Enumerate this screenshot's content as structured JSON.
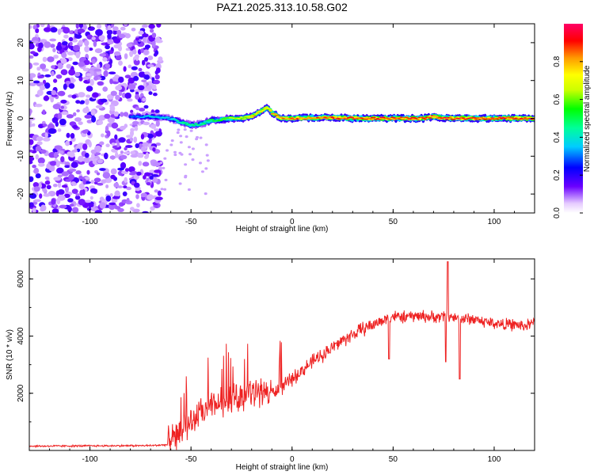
{
  "title": "PAZ1.2025.313.10.58.G02",
  "colors": {
    "snr_line": "#ee2222",
    "background": "#ffffff",
    "axis": "#000000"
  },
  "chart_data": [
    {
      "type": "heatmap",
      "title": "PAZ1.2025.313.10.58.G02",
      "xlabel": "Height of straight line (km)",
      "ylabel": "Frequency (Hz)",
      "xlim": [
        -130,
        120
      ],
      "ylim": [
        -25,
        25
      ],
      "xticks": [
        -100,
        -50,
        0,
        50,
        100
      ],
      "yticks": [
        -20,
        -10,
        0,
        10,
        20
      ],
      "noise_region_x": [
        -130,
        -65
      ],
      "ridge": {
        "description": "dominant spectral peak frequency vs height",
        "x": [
          -80,
          -70,
          -60,
          -55,
          -50,
          -45,
          -40,
          -35,
          -30,
          -25,
          -20,
          -15,
          -12,
          -10,
          -5,
          0,
          10,
          20,
          30,
          50,
          65,
          70,
          75,
          80,
          90,
          100,
          110,
          120
        ],
        "y": [
          0.5,
          0.5,
          0.0,
          -1.0,
          -1.8,
          -1.5,
          -0.5,
          -0.3,
          0.0,
          0.0,
          0.5,
          2.0,
          3.0,
          1.5,
          0.0,
          0.0,
          0.2,
          0.2,
          0.0,
          0.0,
          0.0,
          0.5,
          0.0,
          0.0,
          0.0,
          0.0,
          0.0,
          0.0
        ],
        "amplitude": [
          0.3,
          0.4,
          0.4,
          0.5,
          0.5,
          0.5,
          0.55,
          0.6,
          0.7,
          0.75,
          0.8,
          0.85,
          0.8,
          0.85,
          0.9,
          0.92,
          0.93,
          0.95,
          0.97,
          0.98,
          0.98,
          0.95,
          0.97,
          0.98,
          0.98,
          0.98,
          0.98,
          0.97
        ]
      },
      "colorbar": {
        "label": "Normalized spectral amplitude",
        "range": [
          0,
          1
        ],
        "ticks": [
          "0.0",
          "0.2",
          "0.4",
          "0.6",
          "0.8"
        ]
      }
    },
    {
      "type": "line",
      "xlabel": "Height of straight line (km)",
      "ylabel": "SNR (10 * v/v)",
      "xlim": [
        -130,
        120
      ],
      "ylim": [
        0,
        6700
      ],
      "xticks": [
        -100,
        -50,
        0,
        50,
        100
      ],
      "yticks": [
        2000,
        4000,
        6000
      ],
      "series": [
        {
          "name": "SNR",
          "x": [
            -130,
            -100,
            -70,
            -62,
            -58,
            -50,
            -45,
            -40,
            -35,
            -30,
            -25,
            -20,
            -15,
            -10,
            -5,
            0,
            5,
            10,
            15,
            20,
            25,
            30,
            35,
            40,
            45,
            48,
            50,
            55,
            60,
            65,
            70,
            75,
            80,
            85,
            90,
            95,
            100,
            105,
            110,
            115,
            120
          ],
          "values": [
            150,
            160,
            170,
            200,
            450,
            1000,
            1300,
            1500,
            1700,
            1800,
            1900,
            2000,
            2100,
            2000,
            2200,
            2500,
            2800,
            3100,
            3350,
            3600,
            3850,
            4050,
            4250,
            4400,
            4550,
            4650,
            4700,
            4650,
            4700,
            4700,
            4650,
            4700,
            4650,
            4600,
            4600,
            4500,
            4450,
            4400,
            4400,
            4350,
            4450
          ]
        }
      ]
    }
  ]
}
